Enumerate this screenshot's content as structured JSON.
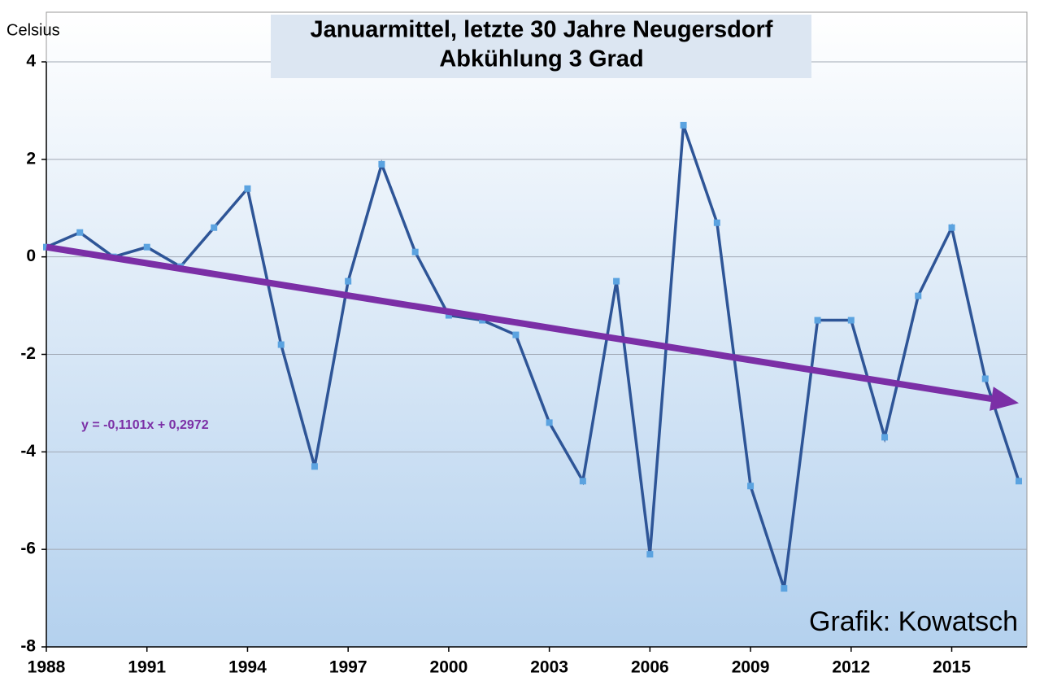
{
  "chart_data": {
    "type": "line",
    "title": "Januarmittel, letzte 30 Jahre Neugersdorf",
    "subtitle": "Abkühlung 3 Grad",
    "y_label": "Celsius",
    "credit": "Grafik: Kowatsch",
    "annotation": "y = -0,1101x + 0,2972",
    "x": [
      1988,
      1989,
      1990,
      1991,
      1992,
      1993,
      1994,
      1995,
      1996,
      1997,
      1998,
      1999,
      2000,
      2001,
      2002,
      2003,
      2004,
      2005,
      2006,
      2007,
      2008,
      2009,
      2010,
      2011,
      2012,
      2013,
      2014,
      2015,
      2016,
      2017
    ],
    "series": [
      {
        "name": "Januarmittel",
        "color": "#2e5597",
        "marker_color": "#5ba3e0",
        "values": [
          0.2,
          0.5,
          0.0,
          0.2,
          -0.2,
          0.6,
          1.4,
          -1.8,
          -4.3,
          -0.5,
          1.9,
          0.1,
          -1.2,
          -1.3,
          -1.6,
          -3.4,
          -4.6,
          -0.5,
          -6.1,
          2.7,
          0.7,
          -4.7,
          -6.8,
          -1.3,
          -1.3,
          -3.7,
          -0.8,
          0.6,
          -2.5,
          -4.6
        ]
      }
    ],
    "trend": {
      "color": "#7b2fa6",
      "x": [
        1988,
        2017
      ],
      "values": [
        0.2,
        -3.0
      ]
    },
    "xlim": [
      1988,
      2017
    ],
    "xticks": [
      1988,
      1991,
      1994,
      1997,
      2000,
      2003,
      2006,
      2009,
      2012,
      2015
    ],
    "ylim": [
      -8,
      4
    ],
    "yticks": [
      -8,
      -6,
      -4,
      -2,
      0,
      2,
      4
    ],
    "grid": true
  }
}
